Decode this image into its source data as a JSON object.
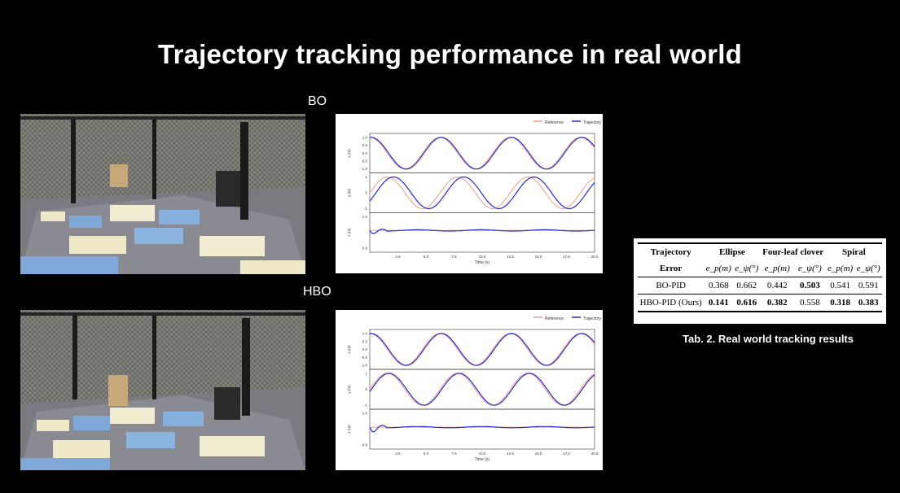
{
  "title": "Trajectory tracking performance in real world",
  "labels": {
    "bo": "BO",
    "hbo": "HBO"
  },
  "plots": {
    "legend": [
      "Reference",
      "Trajectory"
    ],
    "ylabels": [
      "x (m)",
      "y (m)",
      "z (m)"
    ],
    "xlabel": "Time (s)",
    "xticks": [
      "2.5",
      "5.0",
      "7.5",
      "10.0",
      "12.5",
      "15.0",
      "17.5",
      "20.0"
    ],
    "xticks_bo": [
      "2.5",
      "5.0",
      "7.5",
      "10.0",
      "12.5",
      "15.0",
      "17.5",
      "20.0"
    ],
    "yticks_x": [
      "1.0",
      "0.5",
      "0.0",
      "-0.5",
      "-1.0"
    ],
    "yticks_y": [
      "1",
      "0",
      "-1"
    ],
    "yticks_z": [
      "1.0",
      "0.8"
    ],
    "colors": {
      "reference": "#e8a090",
      "trajectory": "#2a2ad0"
    }
  },
  "table": {
    "headers": [
      "Trajectory",
      "Ellipse",
      "Four-leaf clover",
      "Spiral"
    ],
    "subheader_label": "Error",
    "subheaders": [
      "e_p(m)",
      "e_ψ(°)",
      "e_p(m)",
      "e_ψ(°)",
      "e_p(m)",
      "e_ψ(°)"
    ],
    "rows": [
      {
        "name": "BO-PID",
        "values": [
          "0.368",
          "0.662",
          "0.442",
          "0.503",
          "0.541",
          "0.591"
        ]
      },
      {
        "name": "HBO-PID (Ours)",
        "values": [
          "0.141",
          "0.616",
          "0.382",
          "0.558",
          "0.318",
          "0.383"
        ]
      }
    ]
  },
  "caption": "Tab. 2. Real world tracking results"
}
